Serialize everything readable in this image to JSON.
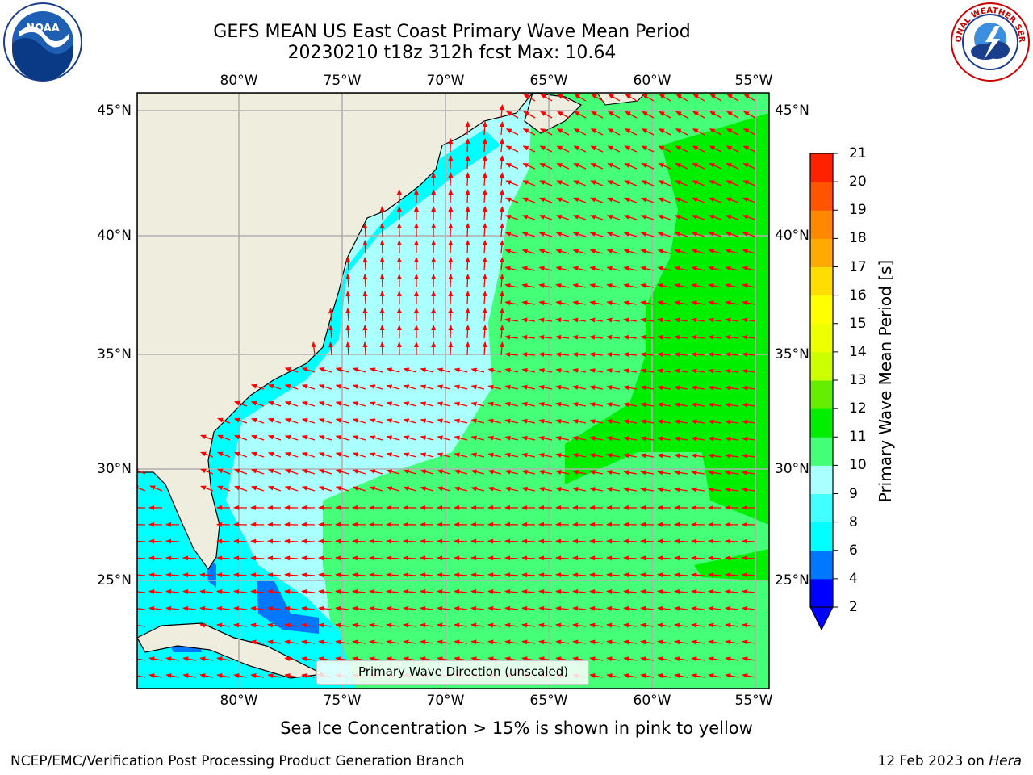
{
  "title": {
    "line1": "GEFS MEAN US East Coast Primary Wave Mean Period",
    "line2": "20230210 t18z 312h fcst   Max: 10.64"
  },
  "logos": {
    "left": "NOAA",
    "right": "NATIONAL WEATHER SERVICE"
  },
  "axes": {
    "lon_ticks": [
      "80°W",
      "75°W",
      "70°W",
      "65°W",
      "60°W",
      "55°W"
    ],
    "lat_ticks": [
      "45°N",
      "40°N",
      "35°N",
      "30°N",
      "25°N"
    ]
  },
  "colorbar": {
    "label": "Primary Wave Mean Period [s]",
    "ticks": [
      "2",
      "4",
      "6",
      "8",
      "9",
      "10",
      "11",
      "12",
      "13",
      "14",
      "15",
      "16",
      "17",
      "18",
      "19",
      "20",
      "21"
    ],
    "colors": [
      "#0000ff",
      "#0077ff",
      "#00ffff",
      "#44ffff",
      "#aaffff",
      "#44ff77",
      "#00ee00",
      "#66ee00",
      "#ccff00",
      "#eeff00",
      "#ffff00",
      "#ffdd00",
      "#ffaa00",
      "#ff8800",
      "#ff5500",
      "#ff2200"
    ]
  },
  "legend": {
    "label": "Primary Wave Direction (unscaled)"
  },
  "note": "Sea Ice Concentration > 15% is shown in pink to yellow",
  "footer": {
    "left": "NCEP/EMC/Verification Post Processing Product Generation Branch",
    "right_prefix": "12 Feb 2023 on ",
    "right_host": "Hera"
  },
  "colors": {
    "land": "#efedde",
    "grid": "#b0b0b0",
    "arrow": "#ff0000",
    "cyan": "#00ffff",
    "light_cyan": "#aaffff",
    "light_green": "#44ff77",
    "green": "#00ee00"
  }
}
